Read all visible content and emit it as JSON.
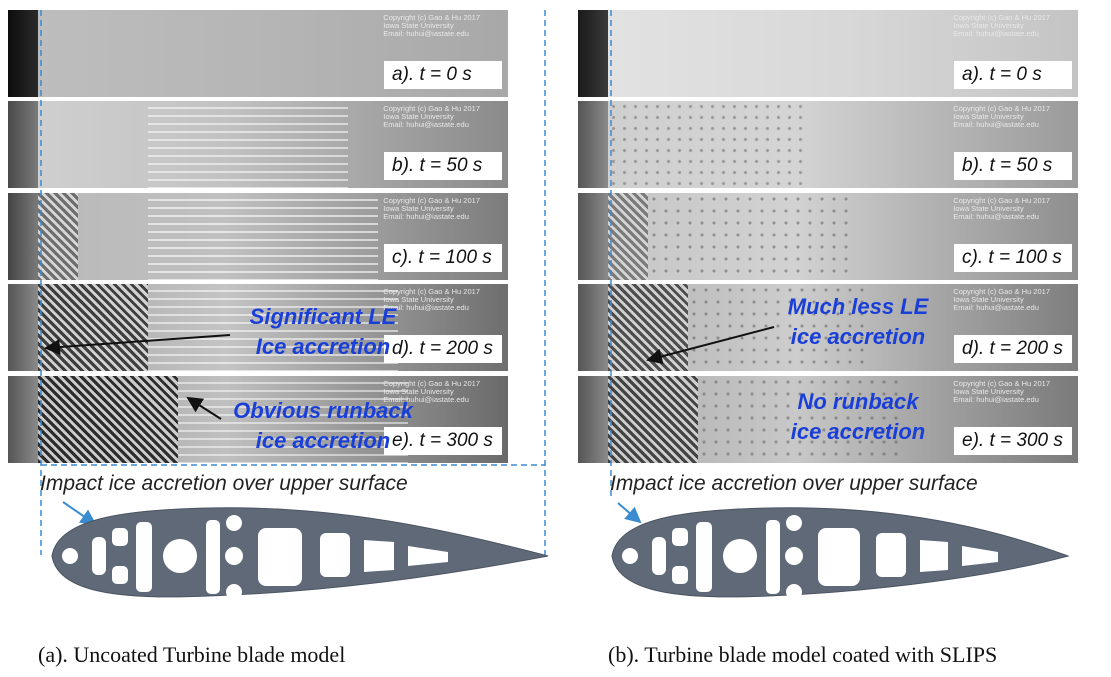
{
  "copyright_text": "Copyright (c) Gao & Hu 2017\nIowa State University\nEmail: huhui@iastate.edu",
  "left_panel": {
    "frames": [
      {
        "label": "a). t = 0 s"
      },
      {
        "label": "b). t = 50 s"
      },
      {
        "label": "c). t = 100 s"
      },
      {
        "label": "d). t = 200 s"
      },
      {
        "label": "e). t = 300 s"
      }
    ],
    "annotation_1": [
      "Significant LE",
      "Ice accretion"
    ],
    "annotation_2": [
      "Obvious runback",
      "ice accretion"
    ],
    "impact_text": "Impact ice accretion over upper surface",
    "caption": "(a). Uncoated Turbine blade model"
  },
  "right_panel": {
    "frames": [
      {
        "label": "a). t = 0 s"
      },
      {
        "label": "b). t = 50 s"
      },
      {
        "label": "c). t = 100 s"
      },
      {
        "label": "d). t = 200 s"
      },
      {
        "label": "e). t = 300 s"
      }
    ],
    "annotation_1": [
      "Much less LE",
      "ice accretion"
    ],
    "annotation_2": [
      "No runback",
      "ice accretion"
    ],
    "impact_text": "Impact ice accretion over upper surface",
    "caption": "(b). Turbine blade model coated with SLIPS"
  },
  "colors": {
    "annotation": "#1a3fd8",
    "guide_line": "#3a8bd0",
    "airfoil": "#5f6978"
  }
}
